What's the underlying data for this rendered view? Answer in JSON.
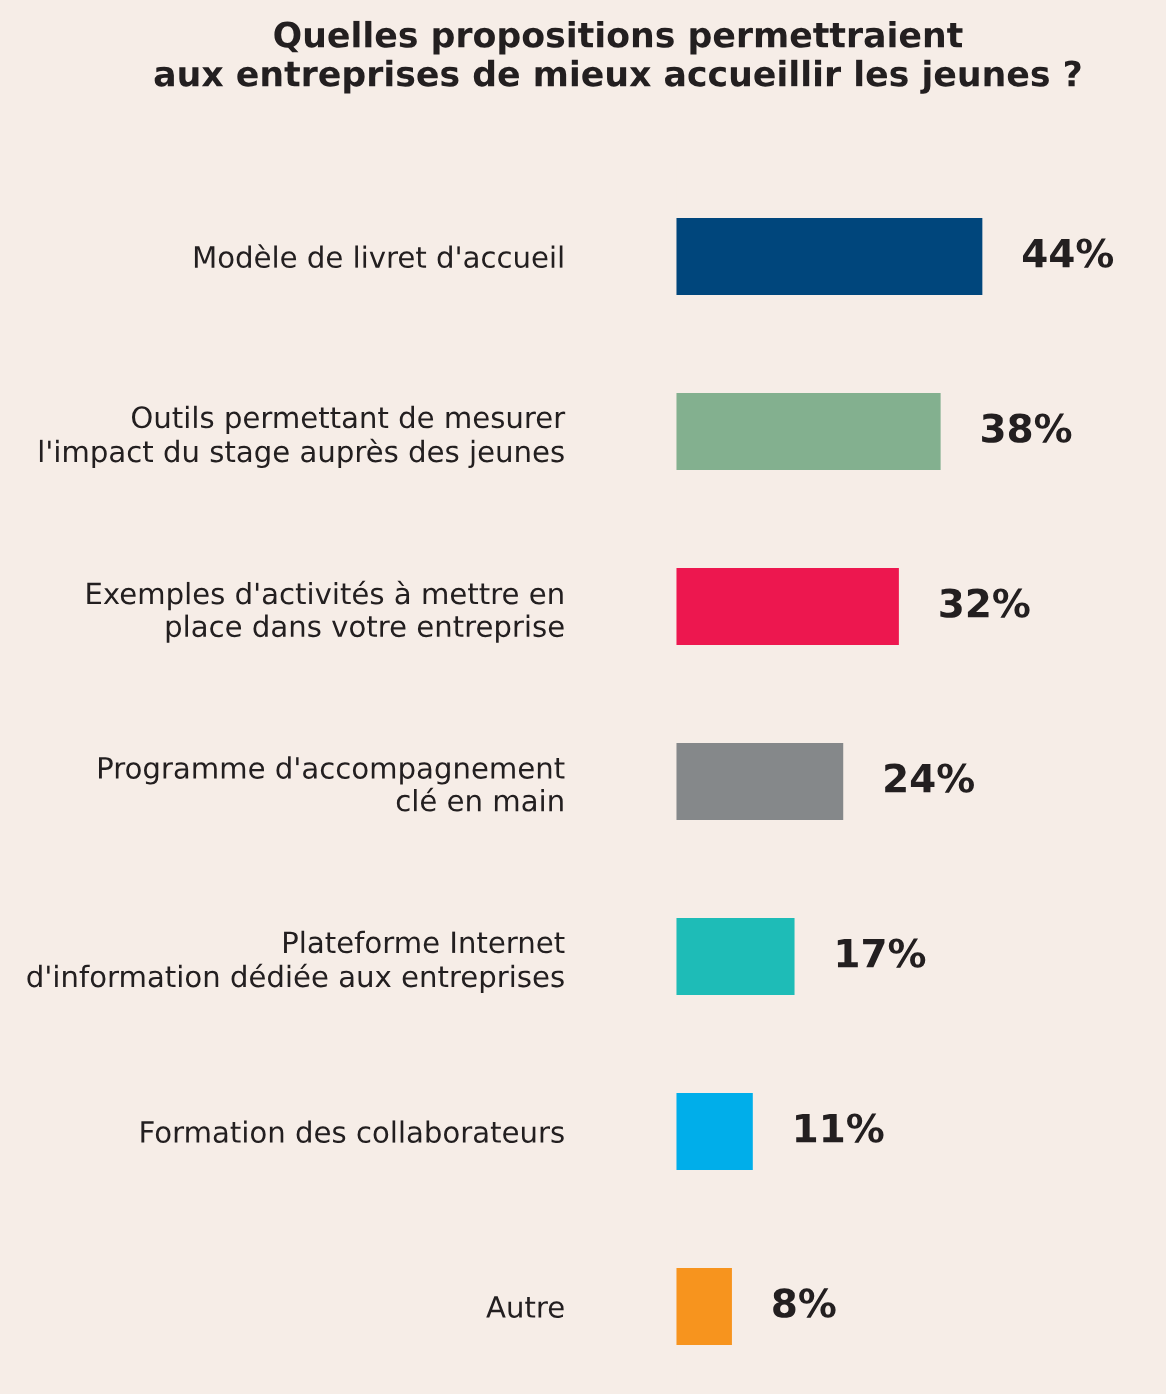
{
  "chart_data": {
    "type": "bar",
    "orientation": "horizontal",
    "title": "Quelles propositions permettraient\naux entreprises de mieux accueillir les jeunes ?",
    "categories": [
      "Modèle de livret d'accueil",
      "Outils permettant de mesurer\nl'impact du stage auprès des jeunes",
      "Exemples d'activités à mettre en\nplace dans votre entreprise",
      "Programme d'accompagnement\nclé en main",
      "Plateforme Internet\nd'information dédiée aux entreprises",
      "Formation des collaborateurs",
      "Autre"
    ],
    "values": [
      44,
      38,
      32,
      24,
      17,
      11,
      8
    ],
    "colors": [
      "#00467c",
      "#83b08f",
      "#ed174f",
      "#85888a",
      "#1ebcb7",
      "#00aeea",
      "#f7941e"
    ],
    "value_labels": [
      "44%",
      "38%",
      "32%",
      "24%",
      "17%",
      "11%",
      "8%"
    ],
    "tick_labels": "y",
    "grid": false,
    "legend": false
  }
}
